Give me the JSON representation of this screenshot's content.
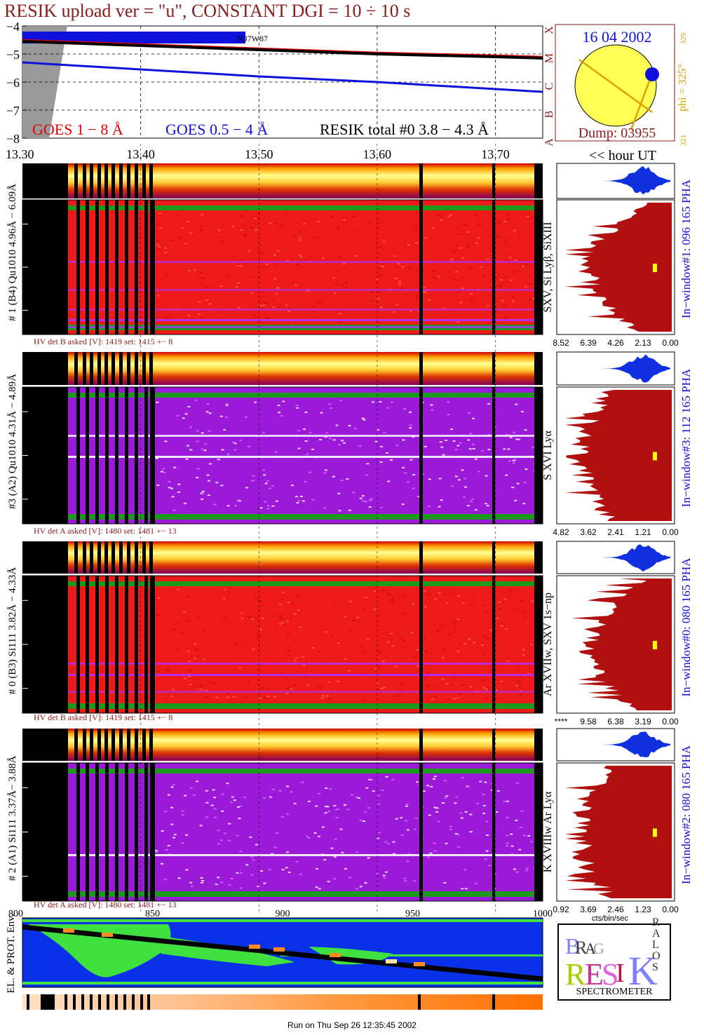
{
  "title": "RESIK upload ver = \"u\", CONSTANT  DGI =  10 ÷  10 s",
  "colors": {
    "title": "#8b1a1a",
    "goes_long": "#e00000",
    "goes_short": "#1010dd",
    "resik_total": "#000000",
    "pha_fill": "#b01010",
    "pha_blue": "#1030e0",
    "orbit_ocean": "#0a30e8",
    "orbit_land": "#40e040",
    "sun": "#ffff55",
    "sun_edge": "#c8a000"
  },
  "goes": {
    "legend_long": "GOES 1 − 8 Å",
    "legend_short": "GOES 0.5 − 4 Å",
    "legend_total": "RESIK total #0  3.8 − 4.3 Å",
    "region_label": "N37W87",
    "class_labels": [
      "X",
      "M",
      "C",
      "B",
      "A"
    ],
    "yticks": [
      "−4",
      "−5",
      "−6",
      "−7",
      "−8"
    ]
  },
  "sun_panel": {
    "date": "16 04 2002",
    "dump": "Dump: 03955",
    "phi": "phi = 325°",
    "phi_top": "329",
    "phi_bottom": "321"
  },
  "time_axis": {
    "labels": [
      "13.30",
      "13.40",
      "13.50",
      "13.60",
      "13.70"
    ],
    "unit": "<< hour UT",
    "record_labels": [
      "800",
      "850",
      "900",
      "950",
      "1000"
    ]
  },
  "detectors": [
    {
      "left_label": "# 1 (B4) Qu1010 4.96Å − 6.09Å",
      "hv": "HV det B asked [V]:  1419 set:  1415  +−    8",
      "lines": "SXV, Si Lyβ, SiXIII",
      "window": "In−window#1:  096 165 PHA",
      "xticks": [
        "8.52",
        "6.39",
        "4.26",
        "2.13",
        "0.00"
      ]
    },
    {
      "left_label": "#3 (A2) Qu1010  4.31Å − 4.89Å",
      "hv": "HV det A asked [V]:  1480 set:  1481  +−    13",
      "lines": "S XVI Lyα",
      "window": "In−window#3:  112 165 PHA",
      "xticks": [
        "4.82",
        "3.62",
        "2.41",
        "1.21",
        "0.00"
      ]
    },
    {
      "left_label": "# 0 (B3) Si111  3.82Å − 4.33Å",
      "hv": "HV det B asked [V]:  1419 set:  1415  +−    8",
      "lines": "Ar XVIIw,  SXV 1s−np",
      "window": "In−window#0:  080 165 PHA",
      "xticks": [
        "****",
        "9.58",
        "6.38",
        "3.19",
        "0.00"
      ]
    },
    {
      "left_label": "# 2 (A1) Si111  3.37Å−  3.88Å",
      "hv": "HV det A asked [V]:  1480 set:  1481  +−    13",
      "lines": "K XVIIIw  Ar Lyα",
      "window": "In−window#2:  080 165 PHA",
      "xticks": [
        "0.92",
        "3.69",
        "2.46",
        "1.23",
        "0.00"
      ],
      "xunit": "cts/bin/sec"
    }
  ],
  "orbit": {
    "label": "EL. & PROT. Env."
  },
  "logo": {
    "bottom": "SPECTROMETER",
    "letters": [
      "B",
      "R",
      "A",
      "G",
      "R",
      "E",
      "S",
      "I",
      "K",
      "S",
      "O",
      "L",
      "A",
      "R"
    ]
  },
  "footer": "Run on Thu Sep 26 12:35:45 2002",
  "chart_data": {
    "type": "line",
    "title": "RESIK upload ver = \"u\", CONSTANT  DGI =  10 ÷  10 s",
    "xlabel": "<< hour UT",
    "ylabel": "",
    "x": [
      13.3,
      13.4,
      13.5,
      13.6,
      13.7,
      13.74
    ],
    "ylim": [
      -8,
      -4
    ],
    "xlim": [
      13.3,
      13.74
    ],
    "series": [
      {
        "name": "GOES 1 − 8 Å",
        "values": [
          -4.5,
          -4.65,
          -4.8,
          -4.95,
          -5.05,
          -5.1
        ]
      },
      {
        "name": "GOES 0.5 − 4 Å",
        "values": [
          -5.3,
          -5.55,
          -5.8,
          -6.0,
          -6.25,
          -6.35
        ]
      },
      {
        "name": "RESIK total #0  3.8 − 4.3 Å",
        "values": [
          -4.55,
          -4.7,
          -4.85,
          -5.0,
          -5.1,
          -5.15
        ]
      }
    ],
    "grid": true
  }
}
